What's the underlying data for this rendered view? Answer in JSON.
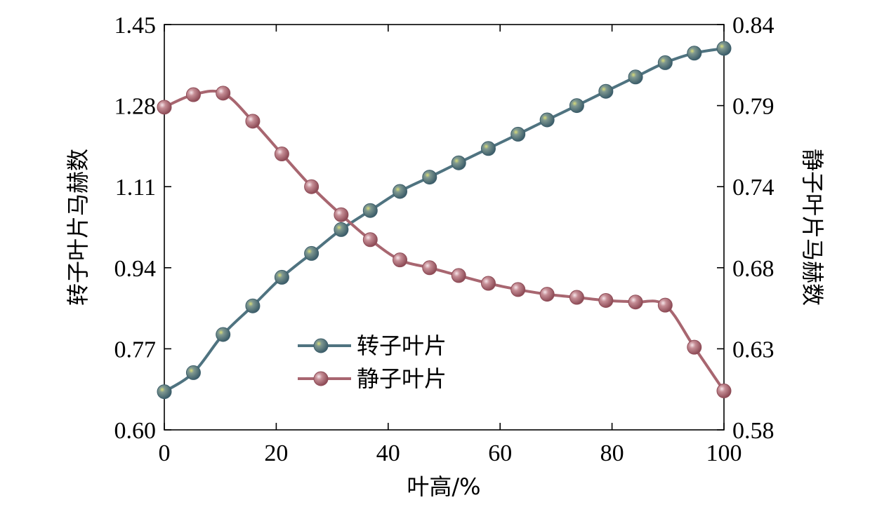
{
  "chart_data": {
    "type": "line",
    "xlabel": "叶高/%",
    "ylabel_left": "转子叶片马赫数",
    "ylabel_right": "静子叶片马赫数",
    "xlim": [
      0,
      100
    ],
    "ylim_left": [
      0.6,
      1.45
    ],
    "ylim_right": [
      0.58,
      0.84
    ],
    "x_ticks": [
      "0",
      "20",
      "40",
      "60",
      "80",
      "100"
    ],
    "y_ticks_left": [
      "0.60",
      "0.77",
      "0.94",
      "1.11",
      "1.28",
      "1.45"
    ],
    "y_ticks_right": [
      "0.58",
      "0.63",
      "0.68",
      "0.74",
      "0.79",
      "0.84"
    ],
    "grid": false,
    "legend_position": "bottom-center",
    "series": [
      {
        "name": "转子叶片",
        "axis": "left",
        "color": "#4f7380",
        "x": [
          0,
          5.2,
          10.5,
          15.8,
          21,
          26.3,
          31.6,
          36.8,
          42.1,
          47.4,
          52.6,
          57.9,
          63.2,
          68.4,
          73.7,
          78.9,
          84.2,
          89.5,
          94.7,
          100
        ],
        "y": [
          0.68,
          0.72,
          0.8,
          0.86,
          0.92,
          0.97,
          1.02,
          1.06,
          1.1,
          1.13,
          1.16,
          1.19,
          1.22,
          1.25,
          1.28,
          1.31,
          1.34,
          1.37,
          1.39,
          1.4
        ]
      },
      {
        "name": "静子叶片",
        "axis": "right",
        "color": "#a86670",
        "x": [
          0,
          5.2,
          10.5,
          15.8,
          21,
          26.3,
          31.6,
          36.8,
          42.1,
          47.4,
          52.6,
          57.9,
          63.2,
          68.4,
          73.7,
          78.9,
          84.2,
          89.5,
          94.7,
          100
        ],
        "y": [
          0.787,
          0.795,
          0.796,
          0.778,
          0.757,
          0.736,
          0.718,
          0.702,
          0.689,
          0.684,
          0.679,
          0.674,
          0.67,
          0.667,
          0.665,
          0.663,
          0.662,
          0.66,
          0.633,
          0.605
        ]
      }
    ]
  }
}
